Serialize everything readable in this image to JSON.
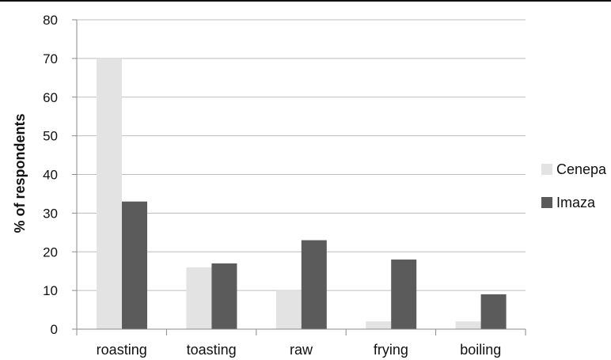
{
  "chart_data": {
    "type": "bar",
    "title": "",
    "xlabel": "",
    "ylabel": "% of respondents",
    "ylim": [
      0,
      80
    ],
    "yticks": [
      0,
      10,
      20,
      30,
      40,
      50,
      60,
      70,
      80
    ],
    "grid": true,
    "legend_position": "right",
    "categories": [
      "roasting",
      "toasting",
      "raw",
      "frying",
      "boiling"
    ],
    "series": [
      {
        "name": "Cenepa",
        "color": "#e3e3e3",
        "values": [
          70,
          16,
          10,
          2,
          2
        ]
      },
      {
        "name": "Imaza",
        "color": "#5b5b5b",
        "values": [
          33,
          17,
          23,
          18,
          9
        ]
      }
    ]
  }
}
